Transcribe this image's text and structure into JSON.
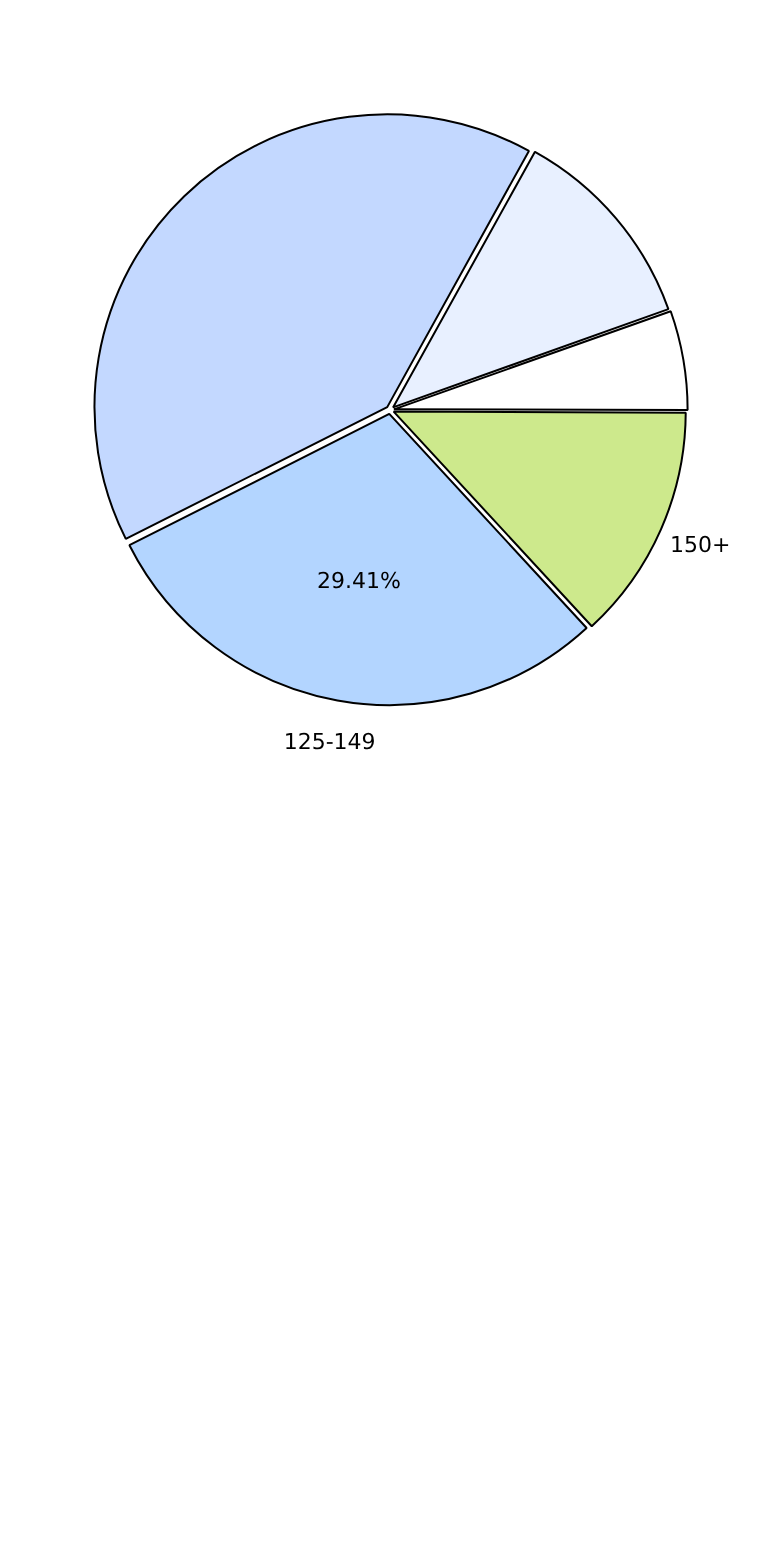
{
  "chart_data": {
    "type": "pie",
    "categories": [
      null,
      null,
      "150+",
      "125-149",
      null
    ],
    "values": [
      11.5,
      5.5,
      13.09,
      29.41,
      40.5
    ],
    "colors": [
      "#e8f0ff",
      "#ffffff",
      "#cde98c",
      "#b3d5ff",
      "#c3d8ff"
    ],
    "value_labels": [
      null,
      null,
      null,
      "29.41%",
      null
    ],
    "legend": false
  }
}
